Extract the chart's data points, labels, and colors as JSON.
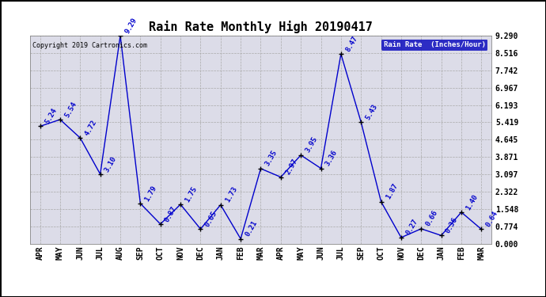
{
  "title": "Rain Rate Monthly High 20190417",
  "copyright": "Copyright 2019 Cartronics.com",
  "legend_label": "Rain Rate  (Inches/Hour)",
  "x_labels": [
    "APR",
    "MAY",
    "JUN",
    "JUL",
    "AUG",
    "SEP",
    "OCT",
    "NOV",
    "DEC",
    "JAN",
    "FEB",
    "MAR",
    "APR",
    "MAY",
    "JUN",
    "JUL",
    "SEP",
    "OCT",
    "NOV",
    "DEC",
    "JAN",
    "FEB",
    "MAR"
  ],
  "values": [
    5.24,
    5.54,
    4.72,
    3.1,
    9.29,
    1.79,
    0.87,
    1.75,
    0.65,
    1.73,
    0.21,
    3.35,
    2.97,
    3.95,
    3.36,
    8.47,
    5.43,
    1.87,
    0.27,
    0.66,
    0.36,
    1.4,
    0.64
  ],
  "yticks": [
    0.0,
    0.774,
    1.548,
    2.322,
    3.097,
    3.871,
    4.645,
    5.419,
    6.193,
    6.967,
    7.742,
    8.516,
    9.29
  ],
  "ymax": 9.29,
  "ymin": 0.0,
  "line_color": "#0000cc",
  "marker_color": "#000000",
  "bg_color": "#ffffff",
  "plot_bg_color": "#dcdce8",
  "title_fontsize": 11,
  "label_fontsize": 6.5,
  "tick_fontsize": 7,
  "legend_bg": "#0000bb",
  "legend_fg": "#ffffff"
}
